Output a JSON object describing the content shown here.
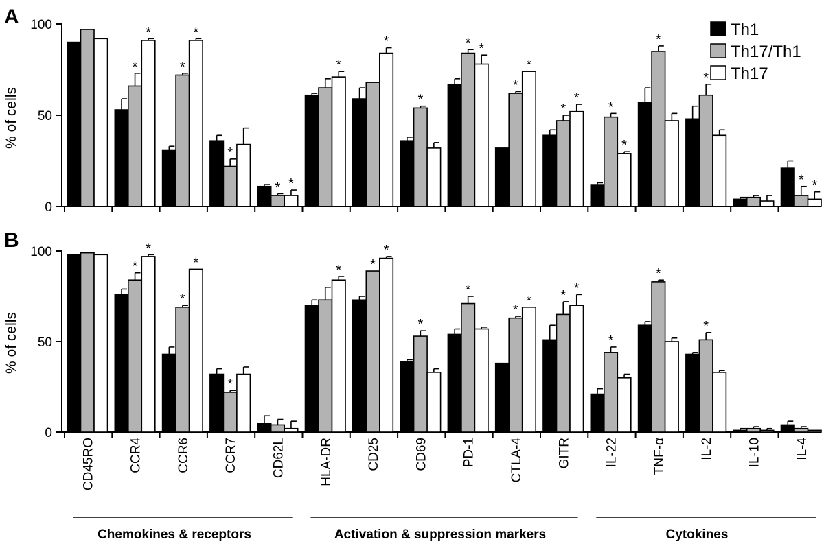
{
  "figure": {
    "legend": [
      {
        "label": "Th1",
        "color": "#000000"
      },
      {
        "label": "Th17/Th1",
        "color": "#b3b3b3"
      },
      {
        "label": "Th17",
        "color": "#ffffff"
      }
    ],
    "groups": [
      {
        "label": "Chemokines & receptors",
        "start": 0,
        "end": 4
      },
      {
        "label": "Activation & suppression markers",
        "start": 5,
        "end": 10
      },
      {
        "label": "Cytokines",
        "start": 11,
        "end": 15
      }
    ]
  },
  "chart_data": [
    {
      "type": "bar",
      "panel": "A",
      "ylabel": "% of cells",
      "ylim": [
        0,
        100
      ],
      "yticks": [
        "0",
        "50",
        "100"
      ],
      "categories": [
        "CD45RO",
        "CCR4",
        "CCR6",
        "CCR7",
        "CD62L",
        "HLA-DR",
        "CD25",
        "CD69",
        "PD-1",
        "CTLA-4",
        "GITR",
        "IL-22",
        "TNF-α",
        "IL-2",
        "IL-10",
        "IL-4"
      ],
      "series": [
        {
          "name": "Th1",
          "values": [
            90,
            53,
            31,
            36,
            11,
            61,
            59,
            36,
            67,
            32,
            39,
            12,
            57,
            48,
            4,
            21
          ],
          "errors": [
            0,
            6,
            2,
            3,
            1,
            1,
            6,
            2,
            3,
            0,
            3,
            1,
            8,
            7,
            1,
            4
          ]
        },
        {
          "name": "Th17/Th1",
          "values": [
            97,
            66,
            72,
            22,
            6,
            65,
            68,
            54,
            84,
            62,
            47,
            49,
            85,
            61,
            5,
            6
          ],
          "errors": [
            0,
            7,
            1,
            4,
            1,
            5,
            0,
            1,
            2,
            1,
            3,
            2,
            3,
            6,
            1,
            5
          ]
        },
        {
          "name": "Th17",
          "values": [
            92,
            91,
            91,
            34,
            6,
            71,
            84,
            32,
            78,
            74,
            52,
            29,
            47,
            39,
            3,
            4
          ],
          "errors": [
            0,
            1,
            1,
            9,
            3,
            3,
            3,
            3,
            5,
            0,
            4,
            1,
            4,
            3,
            3,
            4
          ]
        }
      ],
      "significant": [
        [
          false,
          false,
          false,
          false,
          false,
          false,
          false,
          false,
          false,
          false,
          false,
          false,
          false,
          false,
          false,
          false
        ],
        [
          false,
          true,
          true,
          true,
          true,
          false,
          false,
          true,
          true,
          true,
          true,
          true,
          true,
          true,
          false,
          true
        ],
        [
          false,
          true,
          true,
          false,
          true,
          true,
          true,
          false,
          true,
          true,
          true,
          true,
          false,
          false,
          false,
          true
        ]
      ]
    },
    {
      "type": "bar",
      "panel": "B",
      "ylabel": "% of cells",
      "ylim": [
        0,
        100
      ],
      "yticks": [
        "0",
        "50",
        "100"
      ],
      "categories": [
        "CD45RO",
        "CCR4",
        "CCR6",
        "CCR7",
        "CD62L",
        "HLA-DR",
        "CD25",
        "CD69",
        "PD-1",
        "CTLA-4",
        "GITR",
        "IL-22",
        "TNF-α",
        "IL-2",
        "IL-10",
        "IL-4"
      ],
      "series": [
        {
          "name": "Th1",
          "values": [
            98,
            76,
            43,
            32,
            5,
            70,
            73,
            39,
            54,
            38,
            51,
            21,
            59,
            43,
            1,
            4
          ],
          "errors": [
            0,
            3,
            4,
            3,
            4,
            3,
            2,
            1,
            3,
            0,
            8,
            3,
            2,
            1,
            1,
            2
          ]
        },
        {
          "name": "Th17/Th1",
          "values": [
            99,
            84,
            69,
            22,
            4,
            73,
            89,
            53,
            71,
            63,
            65,
            44,
            83,
            51,
            2,
            2
          ],
          "errors": [
            0,
            4,
            1,
            1,
            3,
            7,
            0,
            3,
            4,
            1,
            7,
            3,
            1,
            4,
            1,
            1
          ]
        },
        {
          "name": "Th17",
          "values": [
            98,
            97,
            90,
            32,
            2,
            84,
            96,
            33,
            57,
            69,
            70,
            30,
            50,
            33,
            1,
            1
          ],
          "errors": [
            0,
            1,
            0,
            4,
            4,
            2,
            1,
            2,
            1,
            0,
            6,
            2,
            2,
            1,
            1,
            0
          ]
        }
      ],
      "significant": [
        [
          false,
          false,
          false,
          false,
          false,
          false,
          false,
          false,
          false,
          false,
          false,
          false,
          false,
          false,
          false,
          false
        ],
        [
          false,
          true,
          true,
          true,
          false,
          false,
          true,
          true,
          true,
          true,
          true,
          true,
          true,
          true,
          false,
          false
        ],
        [
          false,
          true,
          true,
          false,
          false,
          true,
          true,
          false,
          false,
          true,
          true,
          false,
          false,
          false,
          false,
          false
        ]
      ]
    }
  ]
}
